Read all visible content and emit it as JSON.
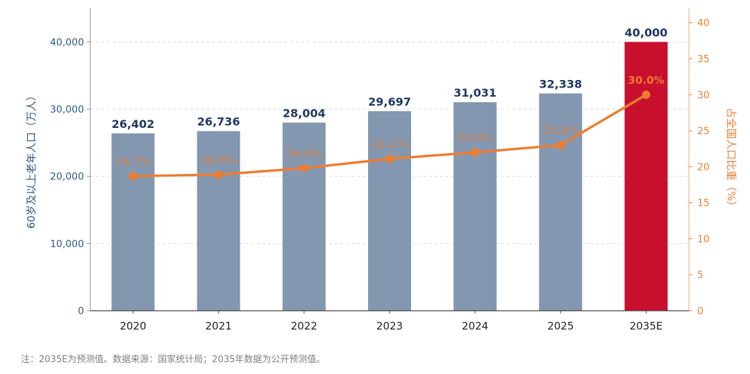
{
  "chart_data": {
    "type": "bar+line",
    "categories": [
      "2020",
      "2021",
      "2022",
      "2023",
      "2024",
      "2025",
      "2035E"
    ],
    "series": [
      {
        "type": "bar",
        "axis": "left",
        "values": [
          26402,
          26736,
          28004,
          29697,
          31031,
          32338,
          40000
        ],
        "value_labels": [
          "26,402",
          "26,736",
          "28,004",
          "29,697",
          "31,031",
          "32,338",
          "40,000"
        ]
      },
      {
        "type": "line",
        "axis": "right",
        "values": [
          18.7,
          18.9,
          19.8,
          21.1,
          22.0,
          23.0,
          30.0
        ],
        "value_labels": [
          "18.7%",
          "18.9%",
          "19.8%",
          "21.1%",
          "22.0%",
          "23.0%",
          "30.0%"
        ]
      }
    ],
    "highlight_index": 6,
    "ylabel_left": "60岁及以上老年人口（万人）",
    "ylabel_right": "占全国人口比重（%）",
    "ylim_left": [
      0,
      45000
    ],
    "ylim_right": [
      0,
      42
    ],
    "yticks_left": [
      "0",
      "10,000",
      "20,000",
      "30,000",
      "40,000"
    ],
    "yticks_left_values": [
      0,
      10000,
      20000,
      30000,
      40000
    ],
    "yticks_right": [
      "0",
      "5",
      "10",
      "15",
      "20",
      "25",
      "30",
      "35",
      "40"
    ],
    "yticks_right_values": [
      0,
      5,
      10,
      15,
      20,
      25,
      30,
      35,
      40
    ],
    "grid": "horizontal-dashed",
    "colors": {
      "bar": "#8497b0",
      "bar_highlight": "#c8102e",
      "line": "#ed7d31",
      "left_axis_text": "#2e5a87",
      "bar_label": "#1f3864",
      "right_axis": "#ed7d31",
      "grid": "#d9d9d9"
    }
  },
  "note": "注：2035E为预测值。数据来源：国家统计局；2035年数据为公开预测值。"
}
